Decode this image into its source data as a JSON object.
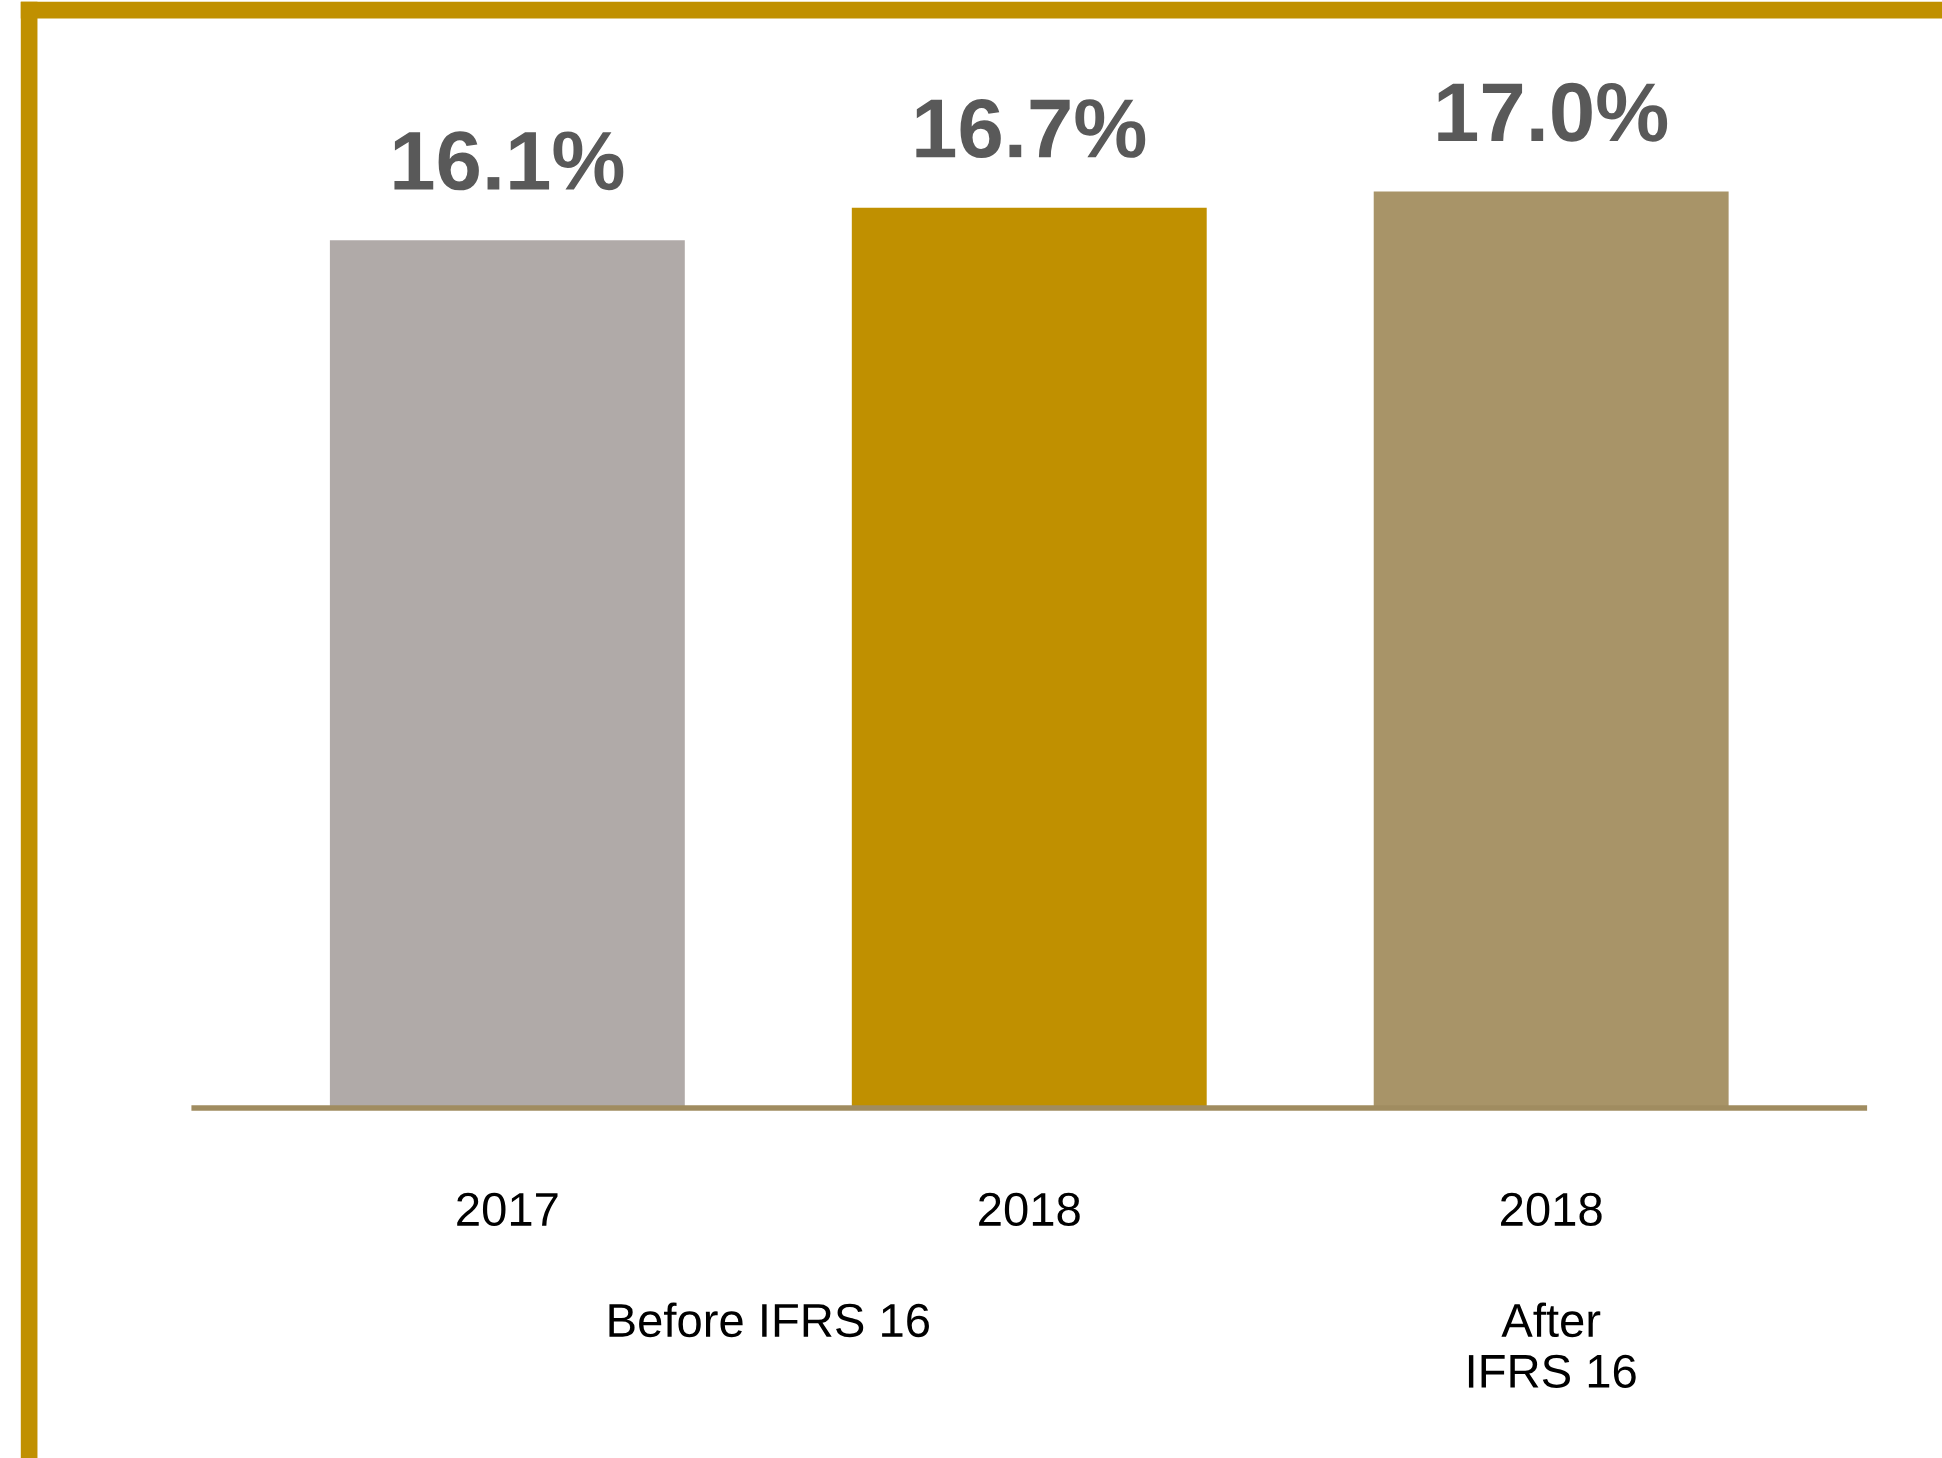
{
  "chart_data": {
    "type": "bar",
    "categories": [
      "2017",
      "2018",
      "2018"
    ],
    "values": [
      16.1,
      16.7,
      17.0
    ],
    "value_labels": [
      "16.1%",
      "16.7%",
      "17.0%"
    ],
    "colors": [
      "#b0aaa8",
      "#c09000",
      "#a89468"
    ],
    "tick_labels": "x",
    "annotations": [
      "Before IFRS 16",
      "After\nIFRS 16"
    ]
  }
}
